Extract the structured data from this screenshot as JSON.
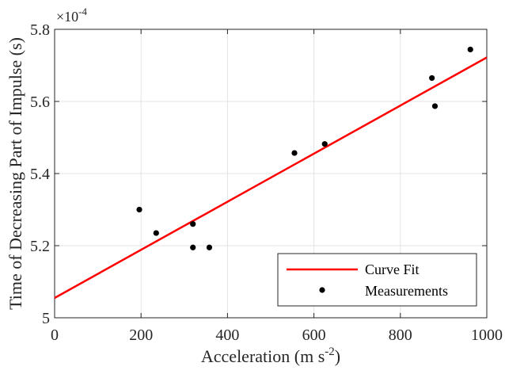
{
  "chart_data": {
    "type": "scatter",
    "xlabel": "Acceleration (m s",
    "xlabel_exponent": "-2",
    "xlabel_close": ")",
    "ylabel": "Time of Decreasing Part of Impulse (s)",
    "y_multiplier_base": "×10",
    "y_multiplier_exponent": "-4",
    "xlim": [
      0,
      1000
    ],
    "ylim": [
      5.0,
      5.8
    ],
    "x_ticks": [
      0,
      200,
      400,
      600,
      800,
      1000
    ],
    "x_tick_labels": [
      "0",
      "200",
      "400",
      "600",
      "800",
      "1000"
    ],
    "y_ticks": [
      5.0,
      5.2,
      5.4,
      5.6,
      5.8
    ],
    "y_tick_labels": [
      "5",
      "5.2",
      "5.4",
      "5.6",
      "5.8"
    ],
    "grid": true,
    "legend_position": "bottom-right",
    "series": [
      {
        "name": "Curve Fit",
        "kind": "line",
        "color": "#ff0000",
        "x": [
          0,
          1000
        ],
        "y": [
          5.055,
          5.722
        ]
      },
      {
        "name": "Measurements",
        "kind": "scatter",
        "color": "#000000",
        "x": [
          196,
          235,
          320,
          320,
          358,
          555,
          625,
          873,
          880,
          962
        ],
        "y": [
          5.3,
          5.235,
          5.26,
          5.195,
          5.195,
          5.457,
          5.482,
          5.665,
          5.587,
          5.744
        ]
      }
    ]
  }
}
